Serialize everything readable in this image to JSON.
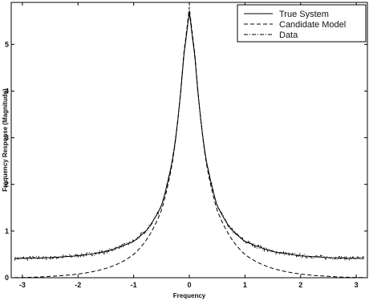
{
  "chart_data": {
    "type": "line",
    "title": "",
    "xlabel": "Frequency",
    "ylabel": "Frequency Response (Magnitude)",
    "xlim": [
      -3.2,
      3.2
    ],
    "ylim": [
      0,
      5.9
    ],
    "xticks": [
      -3,
      -2,
      -1,
      0,
      1,
      2,
      3
    ],
    "xtick_labels": [
      "-3",
      "-2",
      "-1",
      "0",
      "1",
      "2",
      "3"
    ],
    "yticks": [
      0,
      1,
      2,
      3,
      4,
      5
    ],
    "ytick_labels": [
      "0",
      "1",
      "2",
      "3",
      "4",
      "5"
    ],
    "grid": false,
    "legend_position": "top-right",
    "series": [
      {
        "name": "True System",
        "style": "solid",
        "x": [
          -3.14,
          -2.5,
          -2.0,
          -1.5,
          -1.0,
          -0.75,
          -0.5,
          -0.3,
          -0.2,
          -0.1,
          0.0,
          0.1,
          0.2,
          0.3,
          0.5,
          0.75,
          1.0,
          1.5,
          2.0,
          2.5,
          3.14
        ],
        "values": [
          0.41,
          0.43,
          0.47,
          0.56,
          0.78,
          1.04,
          1.55,
          2.55,
          3.45,
          4.75,
          5.72,
          4.75,
          3.45,
          2.55,
          1.55,
          1.04,
          0.78,
          0.56,
          0.47,
          0.43,
          0.41
        ]
      },
      {
        "name": "Candidate Model",
        "style": "dashed",
        "x": [
          -3.14,
          -2.5,
          -2.0,
          -1.5,
          -1.0,
          -0.75,
          -0.5,
          -0.3,
          -0.2,
          -0.1,
          0.0,
          0.1,
          0.2,
          0.3,
          0.5,
          0.75,
          1.0,
          1.5,
          2.0,
          2.5,
          3.14
        ],
        "values": [
          0.0,
          0.03,
          0.08,
          0.2,
          0.5,
          0.85,
          1.45,
          2.5,
          3.45,
          4.8,
          5.8,
          4.8,
          3.45,
          2.5,
          1.45,
          0.85,
          0.5,
          0.2,
          0.08,
          0.03,
          0.0
        ]
      },
      {
        "name": "Data",
        "style": "dashdot",
        "x": [
          -3.14,
          -2.5,
          -2.0,
          -1.5,
          -1.0,
          -0.75,
          -0.5,
          -0.3,
          -0.2,
          -0.1,
          0.0,
          0.1,
          0.2,
          0.3,
          0.5,
          0.75,
          1.0,
          1.5,
          2.0,
          2.5,
          3.14
        ],
        "values": [
          0.41,
          0.43,
          0.47,
          0.56,
          0.78,
          1.04,
          1.55,
          2.55,
          3.45,
          4.75,
          5.72,
          4.75,
          3.45,
          2.55,
          1.55,
          1.04,
          0.78,
          0.56,
          0.47,
          0.43,
          0.41
        ]
      }
    ]
  }
}
